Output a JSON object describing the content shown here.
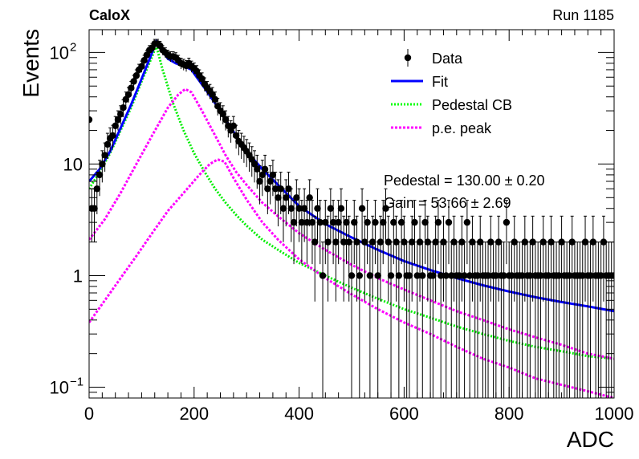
{
  "chart_data": {
    "type": "scatter",
    "title_left": "CaloX",
    "title_right": "Run 1185",
    "xlabel": "ADC",
    "ylabel": "Events",
    "xlim": [
      0,
      1000
    ],
    "ylim": [
      0.08,
      160
    ],
    "yscale": "log",
    "grid": false,
    "legend_position": "top-right",
    "x_ticks": [
      0,
      200,
      400,
      600,
      800,
      1000
    ],
    "y_ticks": [
      {
        "value": 0.1,
        "label": "10",
        "exp": "−1"
      },
      {
        "value": 1,
        "label": "1",
        "exp": ""
      },
      {
        "value": 10,
        "label": "10",
        "exp": ""
      },
      {
        "value": 100,
        "label": "10",
        "exp": "2"
      }
    ],
    "legend": [
      {
        "key": "data",
        "label": "Data",
        "color": "#000000"
      },
      {
        "key": "fit",
        "label": "Fit",
        "color": "#0000ff"
      },
      {
        "key": "ped",
        "label": "Pedestal CB",
        "color": "#00ff00"
      },
      {
        "key": "pe",
        "label": "p.e. peak",
        "color": "#ff00ff"
      }
    ],
    "stats": [
      "Pedestal = 130.00 ± 0.20",
      "Gain = 53.66 ± 2.69"
    ],
    "data": {
      "x": [
        0,
        5,
        10,
        15,
        20,
        25,
        30,
        35,
        40,
        45,
        50,
        55,
        60,
        65,
        70,
        75,
        80,
        85,
        90,
        95,
        100,
        105,
        110,
        115,
        120,
        125,
        130,
        135,
        140,
        145,
        150,
        155,
        160,
        165,
        170,
        175,
        180,
        185,
        190,
        195,
        200,
        205,
        210,
        215,
        220,
        225,
        230,
        235,
        240,
        245,
        250,
        255,
        260,
        265,
        270,
        275,
        280,
        285,
        290,
        295,
        300,
        305,
        310,
        315,
        320,
        325,
        330,
        335,
        340,
        345,
        350,
        355,
        360,
        365,
        370,
        375,
        380,
        385,
        390,
        395,
        400,
        405,
        410,
        415,
        420,
        425,
        430,
        435,
        440,
        445,
        450,
        455,
        460,
        465,
        470,
        475,
        480,
        485,
        490,
        495,
        500,
        505,
        510,
        515,
        520,
        525,
        530,
        535,
        540,
        545,
        550,
        555,
        560,
        565,
        570,
        575,
        580,
        585,
        590,
        595,
        600,
        605,
        610,
        615,
        620,
        625,
        630,
        635,
        640,
        645,
        650,
        655,
        660,
        665,
        670,
        675,
        680,
        685,
        690,
        695,
        700,
        705,
        710,
        715,
        720,
        725,
        730,
        735,
        740,
        745,
        750,
        755,
        760,
        765,
        770,
        775,
        780,
        785,
        790,
        795,
        800,
        805,
        810,
        815,
        820,
        825,
        830,
        835,
        840,
        845,
        850,
        855,
        860,
        865,
        870,
        875,
        880,
        885,
        890,
        895,
        900,
        905,
        910,
        915,
        920,
        925,
        930,
        935,
        940,
        945,
        950,
        955,
        960,
        965,
        970,
        975,
        980,
        985,
        990,
        995,
        1000
      ],
      "y": [
        25,
        4,
        4,
        6,
        8,
        10,
        12,
        15,
        17,
        18,
        22,
        25,
        28,
        32,
        38,
        42,
        48,
        55,
        62,
        70,
        75,
        85,
        95,
        105,
        110,
        120,
        120,
        115,
        105,
        100,
        95,
        92,
        92,
        90,
        85,
        80,
        78,
        76,
        80,
        75,
        72,
        68,
        62,
        58,
        52,
        48,
        45,
        42,
        38,
        33,
        30,
        28,
        25,
        22,
        20,
        22,
        18,
        16,
        15,
        14,
        13,
        12,
        11,
        10,
        9,
        7,
        8,
        9,
        6,
        7,
        8,
        6,
        5,
        6,
        4,
        5,
        6,
        4,
        3,
        5,
        4,
        3,
        4,
        3,
        5,
        3,
        2,
        4,
        3,
        1,
        3,
        2,
        4,
        3,
        2,
        3,
        4,
        2,
        3,
        2,
        1,
        3,
        2,
        1,
        4,
        2,
        3,
        1,
        2,
        3,
        1,
        2,
        3,
        4,
        2,
        1,
        3,
        2,
        1,
        3,
        2,
        1,
        1,
        2,
        3,
        1,
        2,
        1,
        3,
        2,
        1,
        1,
        2,
        3,
        1,
        2,
        1,
        3,
        1,
        2,
        1,
        1,
        2,
        1,
        3,
        1,
        2,
        1,
        1,
        2,
        1,
        1,
        1,
        2,
        1,
        1,
        2,
        1,
        1,
        3,
        1,
        1,
        2,
        1,
        1,
        1,
        2,
        1,
        1,
        2,
        1,
        1,
        1,
        2,
        1,
        1,
        2,
        1,
        1,
        1,
        2,
        1,
        1,
        1,
        2,
        1,
        1,
        1,
        1,
        2,
        1,
        1,
        2,
        1,
        1,
        1,
        2,
        1,
        1,
        1,
        1
      ]
    },
    "fit_curve": {
      "x": [
        0,
        20,
        40,
        60,
        80,
        100,
        120,
        128,
        135,
        150,
        165,
        180,
        195,
        205,
        220,
        240,
        260,
        280,
        300,
        330,
        360,
        400,
        450,
        500,
        550,
        600,
        650,
        700,
        750,
        800,
        850,
        900,
        950,
        1000
      ],
      "y": [
        7,
        9,
        13,
        21,
        34,
        58,
        100,
        125,
        110,
        88,
        80,
        76,
        70,
        60,
        48,
        35,
        25,
        18,
        13,
        9,
        6.5,
        4.2,
        2.9,
        2.2,
        1.7,
        1.35,
        1.12,
        0.95,
        0.82,
        0.72,
        0.64,
        0.58,
        0.53,
        0.48
      ]
    },
    "pedestal_curve": {
      "x": [
        0,
        20,
        40,
        60,
        80,
        100,
        120,
        128,
        140,
        160,
        180,
        200,
        220,
        240,
        260,
        280,
        300,
        330,
        360,
        400,
        450,
        500,
        550,
        600,
        650,
        700,
        750,
        800,
        850,
        900,
        950,
        1000
      ],
      "y": [
        6,
        8.5,
        12.5,
        20,
        32,
        55,
        92,
        115,
        70,
        35,
        20,
        12.5,
        8.5,
        6,
        4.5,
        3.5,
        2.8,
        2.1,
        1.7,
        1.3,
        1.0,
        0.78,
        0.62,
        0.5,
        0.42,
        0.35,
        0.3,
        0.26,
        0.23,
        0.21,
        0.19,
        0.18
      ]
    },
    "pe_peak_1": {
      "x": [
        0,
        30,
        60,
        90,
        120,
        150,
        170,
        183,
        195,
        215,
        240,
        260,
        280,
        300,
        330,
        360,
        400,
        450,
        500,
        550,
        600,
        650,
        700,
        750,
        800,
        850,
        900,
        950,
        1000
      ],
      "y": [
        2.1,
        3.2,
        5.5,
        10,
        18,
        32,
        42,
        47,
        44,
        30,
        18,
        12,
        8.5,
        6.5,
        4.5,
        3.4,
        2.4,
        1.7,
        1.25,
        0.95,
        0.75,
        0.6,
        0.48,
        0.4,
        0.33,
        0.28,
        0.24,
        0.2,
        0.18
      ]
    },
    "pe_peak_2": {
      "x": [
        0,
        30,
        60,
        90,
        120,
        150,
        180,
        210,
        230,
        245,
        258,
        275,
        300,
        330,
        360,
        400,
        450,
        500,
        550,
        600,
        650,
        700,
        750,
        800,
        850,
        900,
        950,
        1000
      ],
      "y": [
        0.38,
        0.6,
        0.95,
        1.5,
        2.4,
        3.8,
        5.5,
        8,
        10,
        11,
        10.5,
        7.5,
        4.8,
        3.0,
        2.1,
        1.4,
        0.95,
        0.68,
        0.5,
        0.38,
        0.3,
        0.23,
        0.18,
        0.15,
        0.12,
        0.105,
        0.092,
        0.08
      ]
    }
  }
}
